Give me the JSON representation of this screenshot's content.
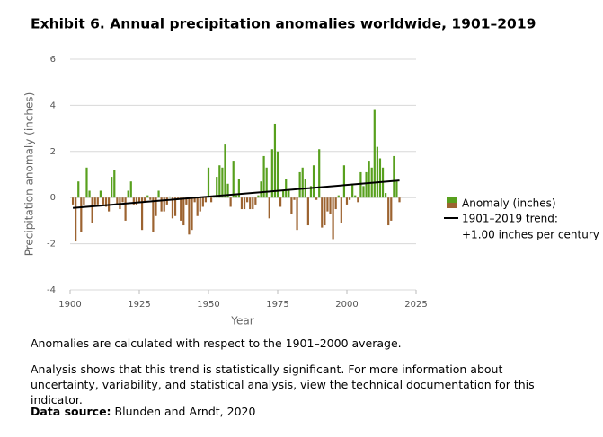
{
  "chart_data": {
    "type": "bar",
    "title": "Exhibit 6. Annual precipitation anomalies worldwide, 1901–2019",
    "x_label": "Year",
    "y_label": "Precipitation anomaly (inches)",
    "x": [
      1901,
      1902,
      1903,
      1904,
      1905,
      1906,
      1907,
      1908,
      1909,
      1910,
      1911,
      1912,
      1913,
      1914,
      1915,
      1916,
      1917,
      1918,
      1919,
      1920,
      1921,
      1922,
      1923,
      1924,
      1925,
      1926,
      1927,
      1928,
      1929,
      1930,
      1931,
      1932,
      1933,
      1934,
      1935,
      1936,
      1937,
      1938,
      1939,
      1940,
      1941,
      1942,
      1943,
      1944,
      1945,
      1946,
      1947,
      1948,
      1949,
      1950,
      1951,
      1952,
      1953,
      1954,
      1955,
      1956,
      1957,
      1958,
      1959,
      1960,
      1961,
      1962,
      1963,
      1964,
      1965,
      1966,
      1967,
      1968,
      1969,
      1970,
      1971,
      1972,
      1973,
      1974,
      1975,
      1976,
      1977,
      1978,
      1979,
      1980,
      1981,
      1982,
      1983,
      1984,
      1985,
      1986,
      1987,
      1988,
      1989,
      1990,
      1991,
      1992,
      1993,
      1994,
      1995,
      1996,
      1997,
      1998,
      1999,
      2000,
      2001,
      2002,
      2003,
      2004,
      2005,
      2006,
      2007,
      2008,
      2009,
      2010,
      2011,
      2012,
      2013,
      2014,
      2015,
      2016,
      2017,
      2018,
      2019
    ],
    "series": [
      {
        "name": "Anomaly (inches)",
        "positive_color": "#58a01e",
        "negative_color": "#9c6330",
        "values": [
          -0.3,
          -1.9,
          0.7,
          -1.5,
          -0.3,
          1.3,
          0.3,
          -1.1,
          -0.3,
          -0.3,
          0.3,
          -0.3,
          -0.4,
          -0.6,
          0.9,
          1.2,
          -0.3,
          -0.5,
          -0.2,
          -1.0,
          0.3,
          0.7,
          -0.3,
          -0.3,
          -0.2,
          -1.4,
          -0.2,
          0.1,
          -0.1,
          -1.5,
          -0.8,
          0.3,
          -0.6,
          -0.6,
          -0.3,
          0.05,
          -0.9,
          -0.8,
          -0.1,
          -1.0,
          -1.2,
          -0.3,
          -1.6,
          -1.4,
          -0.2,
          -0.8,
          -0.6,
          -0.4,
          -0.2,
          1.3,
          -0.2,
          0.1,
          0.9,
          1.4,
          1.3,
          2.3,
          0.6,
          -0.4,
          1.6,
          0.1,
          0.8,
          -0.5,
          -0.5,
          -0.2,
          -0.5,
          -0.5,
          -0.3,
          0.1,
          0.7,
          1.8,
          1.3,
          -0.9,
          2.1,
          3.2,
          2.0,
          -0.4,
          0.3,
          0.8,
          0.3,
          -0.7,
          -0.1,
          -1.4,
          1.1,
          1.3,
          0.8,
          -1.2,
          0.5,
          1.4,
          -0.1,
          2.1,
          -1.3,
          -1.2,
          -0.6,
          -0.7,
          -1.8,
          -0.5,
          0.1,
          -1.1,
          1.4,
          -0.3,
          -0.1,
          0.6,
          0.1,
          -0.2,
          1.1,
          0.5,
          1.1,
          1.6,
          1.3,
          3.8,
          2.2,
          1.7,
          1.3,
          0.2,
          -1.2,
          -1.0,
          1.8,
          0.7,
          -0.2
        ]
      }
    ],
    "trend": {
      "name": "1901–2019 trend:",
      "name_line2": "+1.00 inches per century",
      "color": "#000000",
      "x": [
        1901,
        2019
      ],
      "values": [
        -0.45,
        0.74
      ]
    },
    "xlim": [
      1900,
      2025
    ],
    "xticks": [
      1900,
      1925,
      1950,
      1975,
      2000,
      2025
    ],
    "ylim": [
      -4,
      6
    ],
    "yticks": [
      -4,
      -2,
      0,
      2,
      4,
      6
    ],
    "grid": true
  },
  "notes": [
    "Anomalies are calculated with respect to the 1901–2000 average.",
    "Analysis shows that this trend is statistically significant. For more information about uncertainty, variability, and statistical analysis, view the technical documentation for this indicator."
  ],
  "source": {
    "label": "Data source:",
    "text": "Blunden and Arndt, 2020"
  }
}
